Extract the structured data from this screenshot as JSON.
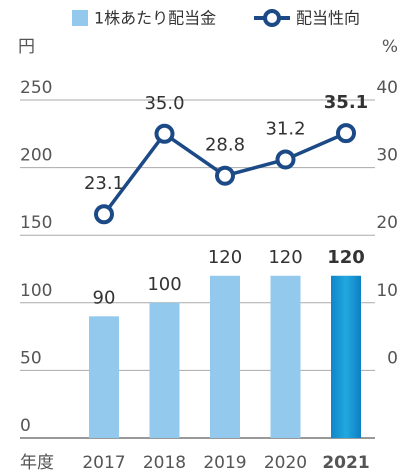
{
  "chart_data": {
    "type": "bar-line",
    "categories": [
      "2017",
      "2018",
      "2019",
      "2020",
      "2021"
    ],
    "x_label": "年度",
    "y_label": "円",
    "y2_label": "%",
    "series": [
      {
        "name": "1株あたり配当金",
        "type": "bar",
        "color": "#92c9ec",
        "highlight_color": "#1a9ad8",
        "values": [
          90,
          100,
          120,
          120,
          120
        ]
      },
      {
        "name": "配当性向",
        "type": "line",
        "axis": "y2",
        "color": "#1b4a86",
        "values": [
          23.1,
          35.0,
          28.8,
          31.2,
          35.1
        ],
        "value_labels": [
          "23.1",
          "35.0",
          "28.8",
          "31.2",
          "35.1"
        ]
      }
    ],
    "highlight_index": 4,
    "ylim": [
      0,
      250
    ],
    "yticks": [
      0,
      50,
      100,
      150,
      200,
      250
    ],
    "y2lim": [
      -10,
      40
    ],
    "y2ticks": [
      0,
      10,
      20,
      30,
      40
    ],
    "grid": true,
    "legend": "top"
  }
}
